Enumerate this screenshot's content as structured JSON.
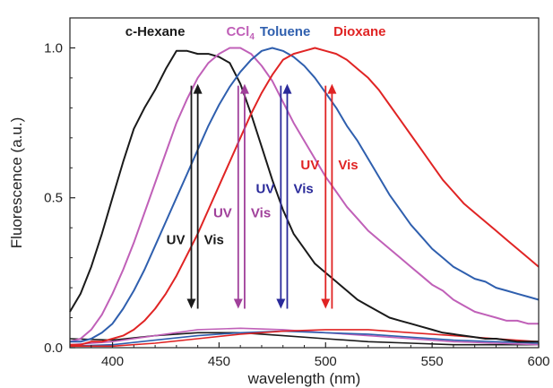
{
  "chart_data": {
    "type": "line",
    "xlabel": "wavelength (nm)",
    "ylabel": "Fluorescence (a.u.)",
    "xlim": [
      380,
      600
    ],
    "ylim": [
      0,
      1.1
    ],
    "x_ticks": [
      "400",
      "450",
      "500",
      "550",
      "600"
    ],
    "x_tick_values": [
      400,
      450,
      500,
      550,
      600
    ],
    "y_ticks": [
      "0.0",
      "0.5",
      "1.0"
    ],
    "y_tick_values": [
      0,
      0.5,
      1.0
    ],
    "grid": false,
    "series": [
      {
        "name": "c-Hexane",
        "color": "#1a1a1a",
        "x": [
          380,
          385,
          390,
          395,
          400,
          405,
          410,
          415,
          420,
          425,
          430,
          435,
          440,
          445,
          450,
          455,
          460,
          465,
          470,
          475,
          480,
          485,
          490,
          495,
          500,
          505,
          510,
          515,
          520,
          525,
          530,
          535,
          540,
          545,
          550,
          555,
          560,
          565,
          570,
          575,
          580,
          585,
          590,
          595,
          600
        ],
        "y": [
          0.12,
          0.18,
          0.27,
          0.38,
          0.5,
          0.62,
          0.73,
          0.8,
          0.86,
          0.93,
          0.99,
          0.99,
          0.98,
          0.98,
          0.97,
          0.95,
          0.88,
          0.78,
          0.67,
          0.56,
          0.46,
          0.38,
          0.33,
          0.28,
          0.25,
          0.22,
          0.19,
          0.16,
          0.14,
          0.12,
          0.1,
          0.09,
          0.08,
          0.07,
          0.06,
          0.05,
          0.045,
          0.04,
          0.035,
          0.03,
          0.03,
          0.025,
          0.02,
          0.02,
          0.02
        ]
      },
      {
        "name": "CCl4",
        "color": "#c060b8",
        "x": [
          380,
          385,
          390,
          395,
          400,
          405,
          410,
          415,
          420,
          425,
          430,
          435,
          440,
          445,
          450,
          455,
          460,
          465,
          470,
          475,
          480,
          485,
          490,
          495,
          500,
          505,
          510,
          515,
          520,
          525,
          530,
          535,
          540,
          545,
          550,
          555,
          560,
          565,
          570,
          575,
          580,
          585,
          590,
          595,
          600
        ],
        "y": [
          0.02,
          0.03,
          0.06,
          0.11,
          0.18,
          0.26,
          0.35,
          0.45,
          0.55,
          0.65,
          0.75,
          0.83,
          0.9,
          0.95,
          0.98,
          1.0,
          1.0,
          0.98,
          0.94,
          0.89,
          0.82,
          0.75,
          0.69,
          0.63,
          0.57,
          0.52,
          0.47,
          0.43,
          0.39,
          0.36,
          0.33,
          0.3,
          0.27,
          0.24,
          0.21,
          0.19,
          0.16,
          0.14,
          0.12,
          0.11,
          0.1,
          0.09,
          0.09,
          0.08,
          0.08
        ]
      },
      {
        "name": "Toluene",
        "color": "#2f5fae",
        "x": [
          380,
          385,
          390,
          395,
          400,
          405,
          410,
          415,
          420,
          425,
          430,
          435,
          440,
          445,
          450,
          455,
          460,
          465,
          470,
          475,
          480,
          485,
          490,
          495,
          500,
          505,
          510,
          515,
          520,
          525,
          530,
          535,
          540,
          545,
          550,
          555,
          560,
          565,
          570,
          575,
          580,
          585,
          590,
          595,
          600
        ],
        "y": [
          0.02,
          0.02,
          0.03,
          0.05,
          0.08,
          0.13,
          0.19,
          0.26,
          0.34,
          0.42,
          0.5,
          0.58,
          0.66,
          0.74,
          0.81,
          0.87,
          0.92,
          0.96,
          0.99,
          1.0,
          0.99,
          0.97,
          0.94,
          0.9,
          0.85,
          0.8,
          0.74,
          0.69,
          0.63,
          0.57,
          0.51,
          0.46,
          0.41,
          0.37,
          0.33,
          0.3,
          0.27,
          0.25,
          0.23,
          0.22,
          0.2,
          0.19,
          0.18,
          0.17,
          0.16
        ]
      },
      {
        "name": "Dioxane",
        "color": "#e02424",
        "x": [
          380,
          385,
          390,
          395,
          400,
          405,
          410,
          415,
          420,
          425,
          430,
          435,
          440,
          445,
          450,
          455,
          460,
          465,
          470,
          475,
          480,
          485,
          490,
          495,
          500,
          505,
          510,
          515,
          520,
          525,
          530,
          535,
          540,
          545,
          550,
          555,
          560,
          565,
          570,
          575,
          580,
          585,
          590,
          595,
          600
        ],
        "y": [
          0.01,
          0.01,
          0.02,
          0.02,
          0.03,
          0.04,
          0.06,
          0.09,
          0.13,
          0.18,
          0.24,
          0.31,
          0.38,
          0.46,
          0.54,
          0.62,
          0.7,
          0.78,
          0.85,
          0.91,
          0.96,
          0.98,
          0.99,
          1.0,
          0.99,
          0.98,
          0.96,
          0.93,
          0.9,
          0.86,
          0.81,
          0.76,
          0.71,
          0.66,
          0.61,
          0.56,
          0.52,
          0.48,
          0.45,
          0.42,
          0.39,
          0.36,
          0.33,
          0.3,
          0.27
        ]
      }
    ],
    "low_series": [
      {
        "color": "#1a1a1a",
        "x": [
          380,
          400,
          420,
          440,
          460,
          480,
          500,
          520,
          540,
          560,
          580,
          600
        ],
        "y": [
          0.03,
          0.025,
          0.04,
          0.05,
          0.05,
          0.04,
          0.03,
          0.02,
          0.015,
          0.01,
          0.01,
          0.01
        ]
      },
      {
        "color": "#c060b8",
        "x": [
          380,
          400,
          420,
          440,
          460,
          480,
          500,
          520,
          540,
          560,
          580,
          600
        ],
        "y": [
          0.01,
          0.02,
          0.04,
          0.06,
          0.065,
          0.06,
          0.05,
          0.04,
          0.03,
          0.02,
          0.015,
          0.01
        ]
      },
      {
        "color": "#2f5fae",
        "x": [
          380,
          400,
          420,
          440,
          460,
          480,
          500,
          520,
          540,
          560,
          580,
          600
        ],
        "y": [
          0.005,
          0.01,
          0.025,
          0.04,
          0.05,
          0.055,
          0.05,
          0.045,
          0.035,
          0.025,
          0.02,
          0.015
        ]
      },
      {
        "color": "#e02424",
        "x": [
          380,
          400,
          420,
          440,
          460,
          480,
          500,
          520,
          540,
          560,
          580,
          600
        ],
        "y": [
          0.005,
          0.005,
          0.015,
          0.03,
          0.045,
          0.055,
          0.06,
          0.06,
          0.05,
          0.04,
          0.03,
          0.02
        ]
      }
    ],
    "series_labels": [
      {
        "text": "c-Hexane",
        "sub": "",
        "color": "#1a1a1a",
        "x": 420,
        "y": 1.04
      },
      {
        "text": "CCl",
        "sub": "4",
        "color": "#c060b8",
        "x": 460,
        "y": 1.04
      },
      {
        "text": "Toluene",
        "sub": "",
        "color": "#2f5fae",
        "x": 481,
        "y": 1.04
      },
      {
        "text": "Dioxane",
        "sub": "",
        "color": "#e02424",
        "x": 516,
        "y": 1.04
      }
    ],
    "arrows": [
      {
        "color": "#1a1a1a",
        "x_down": 437,
        "x_up": 440,
        "y_low": 0.13,
        "y_high": 0.88,
        "uv": "UV",
        "vis": "Vis",
        "label_y": 0.36
      },
      {
        "color": "#a0409a",
        "x_down": 459,
        "x_up": 462,
        "y_low": 0.13,
        "y_high": 0.88,
        "uv": "UV",
        "vis": "Vis",
        "label_y": 0.45
      },
      {
        "color": "#2a2a9a",
        "x_down": 479,
        "x_up": 482,
        "y_low": 0.13,
        "y_high": 0.88,
        "uv": "UV",
        "vis": "Vis",
        "label_y": 0.53
      },
      {
        "color": "#e02424",
        "x_down": 500,
        "x_up": 503,
        "y_low": 0.13,
        "y_high": 0.88,
        "uv": "UV",
        "vis": "Vis",
        "label_y": 0.61
      }
    ]
  }
}
